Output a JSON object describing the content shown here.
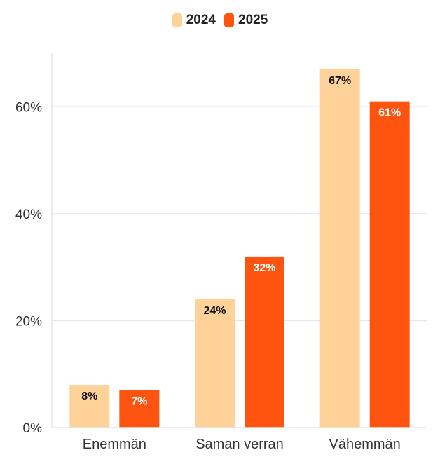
{
  "chart_data": {
    "type": "bar",
    "categories": [
      "Enemmän",
      "Saman verran",
      "Vähemmän"
    ],
    "series": [
      {
        "name": "2024",
        "color": "#FED298",
        "label_color": "#111111",
        "values": [
          8,
          24,
          67
        ],
        "labels": [
          "8%",
          "24%",
          "67%"
        ]
      },
      {
        "name": "2025",
        "color": "#FF5410",
        "label_color": "#ffffff",
        "values": [
          7,
          32,
          61
        ],
        "labels": [
          "7%",
          "32%",
          "61%"
        ]
      }
    ],
    "ylim": [
      0,
      70
    ],
    "yticks": [
      0,
      20,
      40,
      60
    ],
    "ytick_labels": [
      "0%",
      "20%",
      "40%",
      "60%"
    ],
    "grid": true,
    "legend": "top-center"
  }
}
